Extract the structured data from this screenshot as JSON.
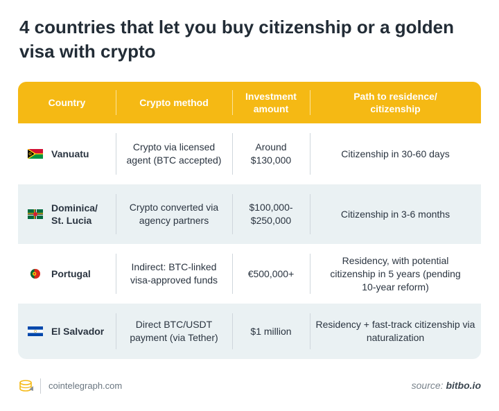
{
  "title": "4 countries that let you buy citizenship or a golden visa with crypto",
  "table": {
    "headers": [
      "Country",
      "Crypto method",
      "Investment amount",
      "Path to residence/ citizenship"
    ],
    "header_color": "#f5b914",
    "stripe_color": "#eaf1f3",
    "rows": [
      {
        "country": "Vanuatu",
        "method": "Crypto via licensed agent (BTC accepted)",
        "amount": "Around $130,000",
        "path": "Citizenship in 30-60 days",
        "flag_icon": "vanuatu-flag-icon"
      },
      {
        "country": "Dominica/ St. Lucia",
        "method": "Crypto converted via agency partners",
        "amount": "$100,000- $250,000",
        "path": "Citizenship in 3-6 months",
        "flag_icon": "dominica-flag-icon"
      },
      {
        "country": "Portugal",
        "method": "Indirect: BTC-linked visa-approved funds",
        "amount": "€500,000+",
        "path": "Residency, with potential citizenship in 5 years (pending 10-year reform)",
        "flag_icon": "portugal-flag-icon"
      },
      {
        "country": "El Salvador",
        "method": "Direct BTC/USDT payment (via Tether)",
        "amount": "$1 million",
        "path": "Residency + fast-track citizenship via naturalization",
        "flag_icon": "el-salvador-flag-icon"
      }
    ]
  },
  "footer": {
    "site": "cointelegraph.com",
    "source_prefix": "source:",
    "source_name": "bitbo.io",
    "logo_icon": "cointelegraph-logo-icon"
  }
}
